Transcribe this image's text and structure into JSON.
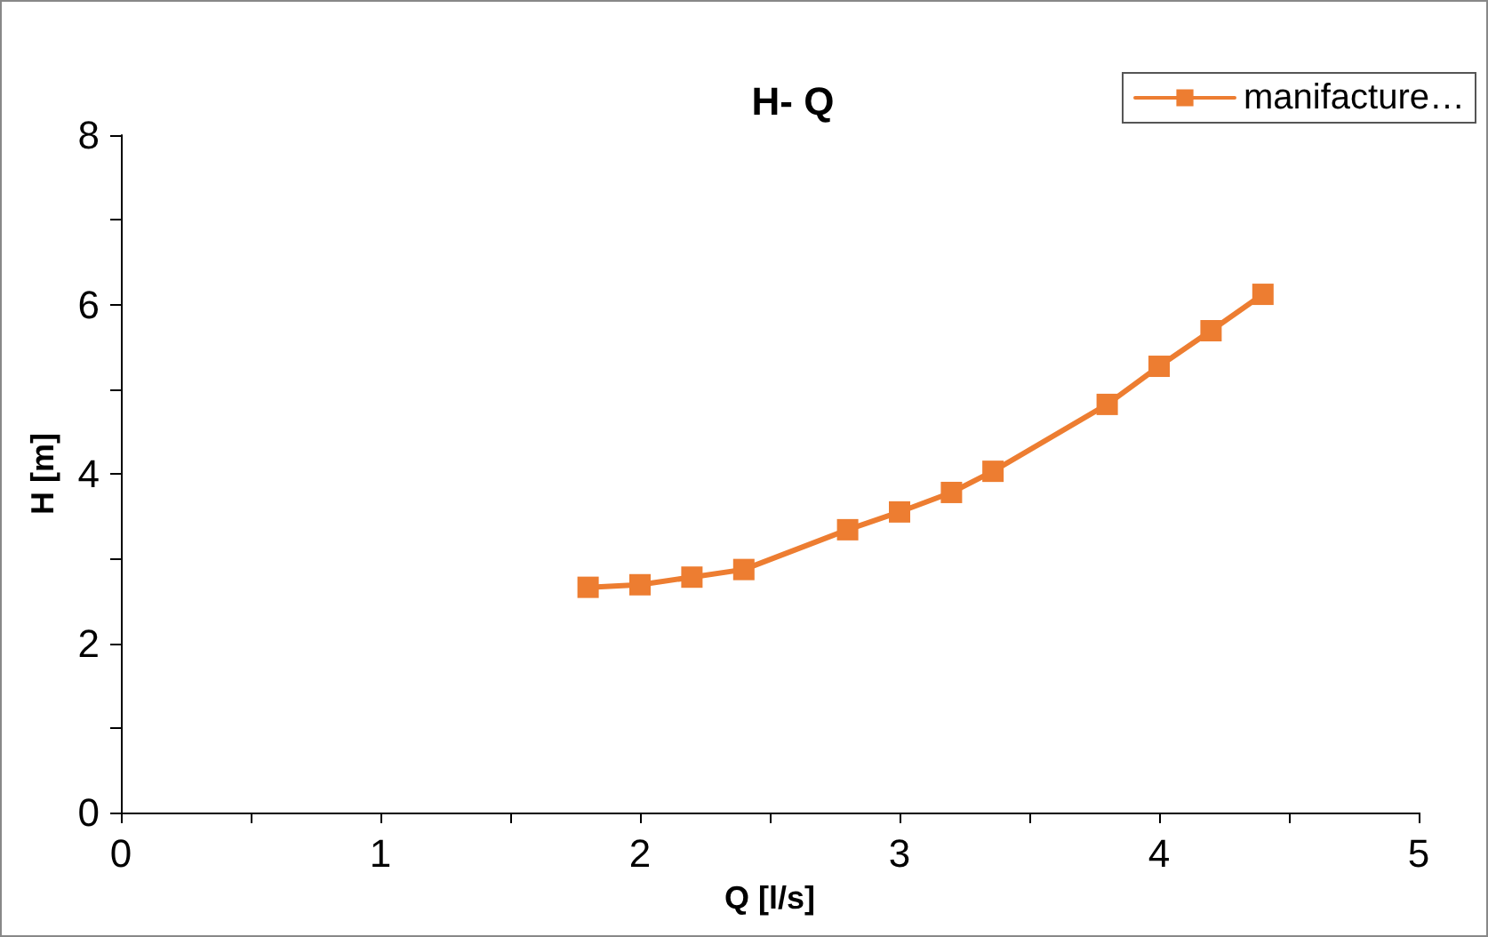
{
  "chart_data": {
    "type": "line",
    "title": "H- Q",
    "xlabel": "Q [l/s]",
    "ylabel": "H [m]",
    "x": [
      1.8,
      2.0,
      2.2,
      2.4,
      2.8,
      3.0,
      3.2,
      3.36,
      3.8,
      4.0,
      4.2,
      4.4
    ],
    "series": [
      {
        "name": "manifacture…",
        "color": "#ed7d31",
        "values": [
          2.66,
          2.69,
          2.78,
          2.87,
          3.34,
          3.55,
          3.78,
          4.03,
          4.82,
          5.27,
          5.69,
          6.12
        ]
      }
    ],
    "xlim": [
      0,
      5
    ],
    "xticks": [
      0,
      {
        "value": 0.5,
        "label": null
      },
      1,
      {
        "value": 1.5,
        "label": null
      },
      2,
      {
        "value": 2.5,
        "label": null
      },
      3,
      {
        "value": 3.5,
        "label": null
      },
      4,
      {
        "value": 4.5,
        "label": null
      },
      5
    ],
    "ylim": [
      0,
      8
    ],
    "yticks": [
      0,
      {
        "value": 1,
        "label": null
      },
      2,
      {
        "value": 3,
        "label": null
      },
      4,
      {
        "value": 5,
        "label": null
      },
      6,
      {
        "value": 7,
        "label": null
      },
      8
    ],
    "grid": false,
    "legend": "top right",
    "marker": "square",
    "line_style": "solid"
  }
}
